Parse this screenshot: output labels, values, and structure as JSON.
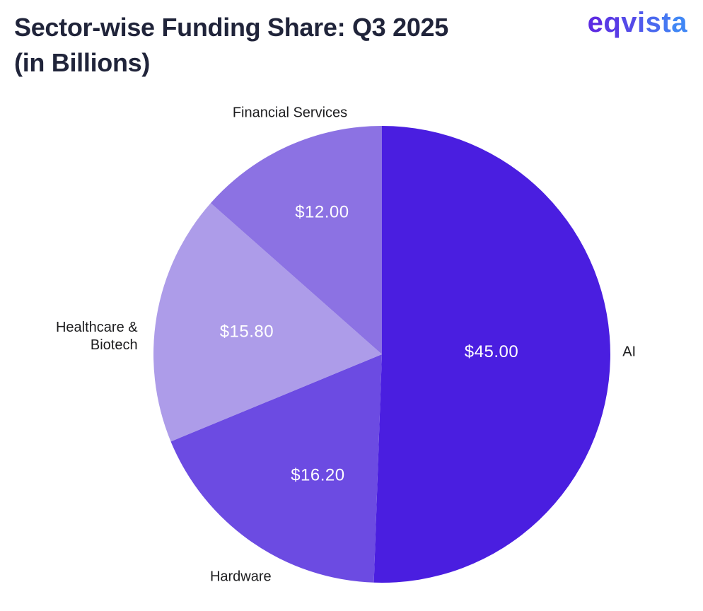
{
  "header": {
    "title": "Sector-wise Funding Share: Q3 2025\n(in Billions)",
    "logo_text": "eqvista",
    "logo_gradient": [
      "#5d2ce2",
      "#4187f5"
    ]
  },
  "chart_data": {
    "type": "pie",
    "title": "Sector-wise Funding Share: Q3 2025 (in Billions)",
    "direction": "clockwise",
    "start_angle_deg": 0,
    "total": 89.0,
    "value_labels": "inside",
    "category_labels": "outside",
    "legend": "none",
    "slices": [
      {
        "label": "AI",
        "value": 45.0,
        "display_value": "$45.00",
        "color": "#4a1ee0"
      },
      {
        "label": "Hardware",
        "value": 16.2,
        "display_value": "$16.20",
        "color": "#6c4be2"
      },
      {
        "label": "Healthcare & Biotech",
        "label_lines": [
          "Healthcare &",
          "Biotech"
        ],
        "value": 15.8,
        "display_value": "$15.80",
        "color": "#ad9ce9"
      },
      {
        "label": "Financial Services",
        "value": 12.0,
        "display_value": "$12.00",
        "color": "#8c72e3"
      }
    ]
  }
}
